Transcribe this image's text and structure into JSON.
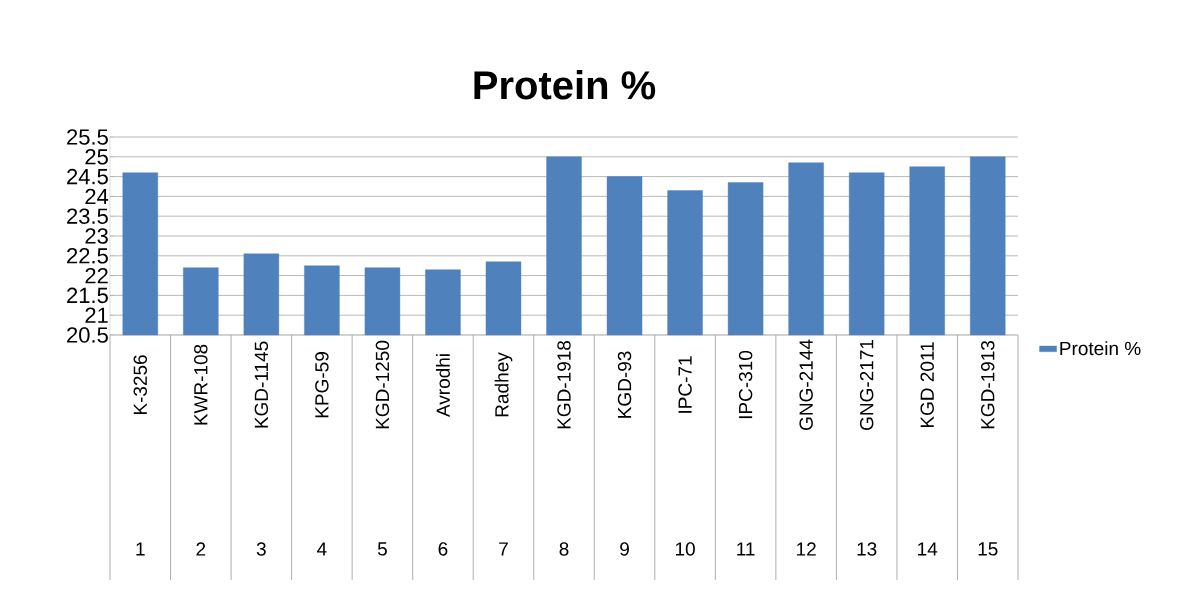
{
  "chart_data": {
    "type": "bar",
    "title": "Protein %",
    "categories": [
      "K-3256",
      "KWR-108",
      "KGD-1145",
      "KPG-59",
      "KGD-1250",
      "Avrodhi",
      "Radhey",
      "KGD-1918",
      "KGD-93",
      "IPC-71",
      "IPC-310",
      "GNG-2144",
      "GNG-2171",
      "KGD 2011",
      "KGD-1913"
    ],
    "series": [
      {
        "name": "Protein %",
        "color": "#4f81bd",
        "values": [
          24.6,
          22.2,
          22.55,
          22.25,
          22.2,
          22.15,
          22.35,
          25.0,
          24.5,
          24.15,
          24.35,
          24.85,
          24.6,
          24.75,
          25.0
        ]
      }
    ],
    "ylim": [
      20.5,
      25.5
    ],
    "yticks": [
      20.5,
      21,
      21.5,
      22,
      22.5,
      23,
      23.5,
      24,
      24.5,
      25,
      25.5
    ],
    "grid": "y",
    "legend": "right",
    "annotations": [
      "1",
      "2",
      "3",
      "4",
      "5",
      "6",
      "7",
      "8",
      "9",
      "10",
      "11",
      "12",
      "13",
      "14",
      "15"
    ]
  }
}
